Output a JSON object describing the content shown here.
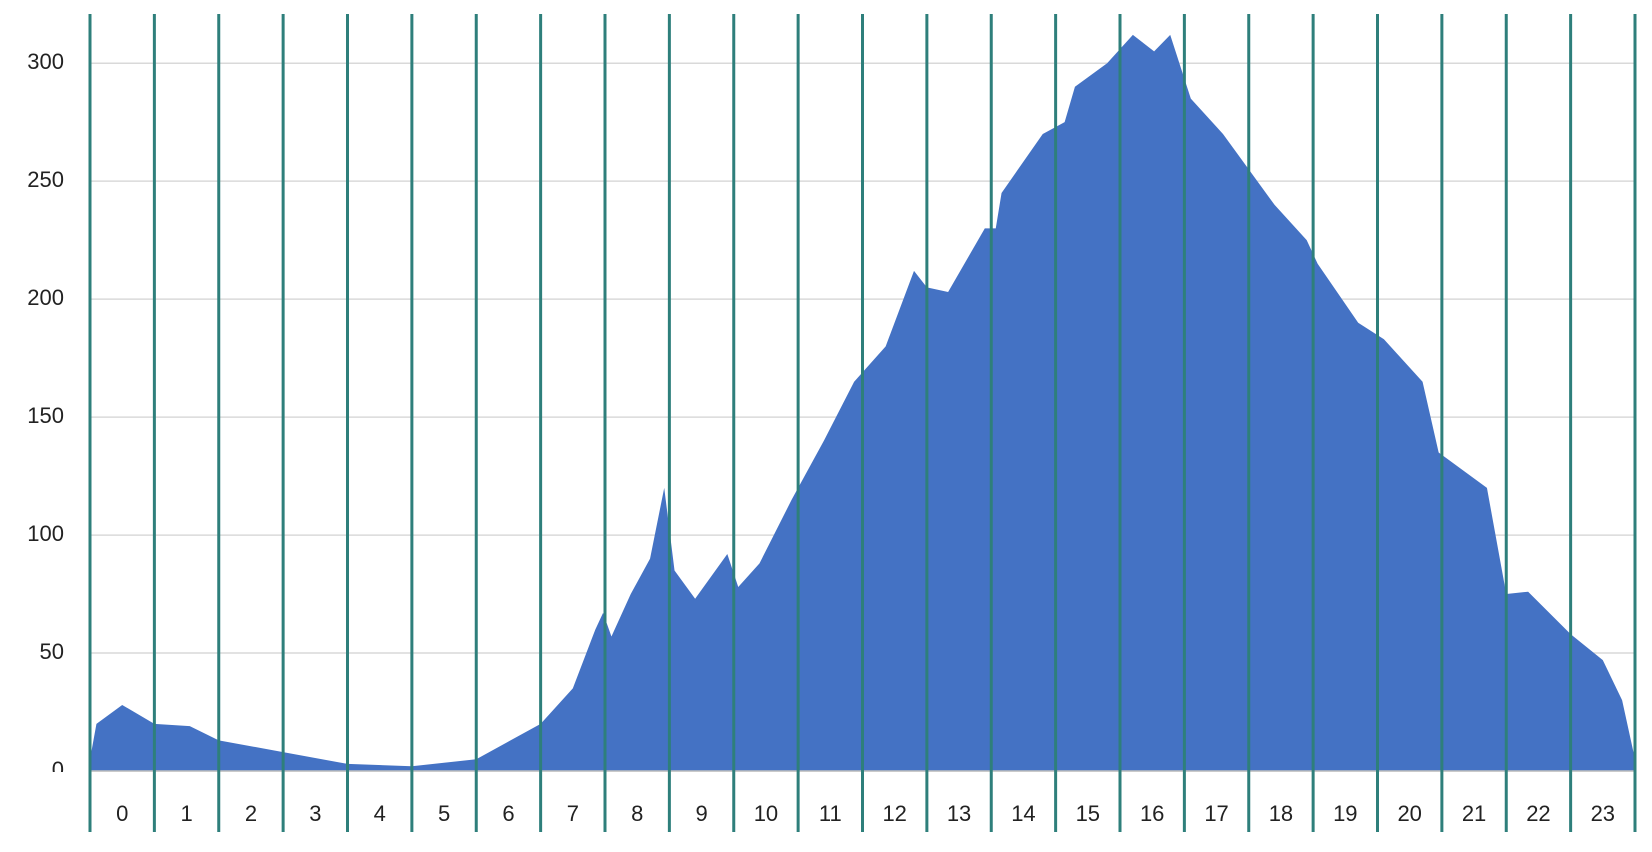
{
  "chart_data": {
    "type": "area",
    "categories": [
      "0",
      "1",
      "2",
      "3",
      "4",
      "5",
      "6",
      "7",
      "8",
      "9",
      "10",
      "11",
      "12",
      "13",
      "14",
      "15",
      "16",
      "17",
      "18",
      "19",
      "20",
      "21",
      "22",
      "23"
    ],
    "x": [
      0,
      0.1,
      0.5,
      1.0,
      1.55,
      2.0,
      3.0,
      4.0,
      5.0,
      6.0,
      7.0,
      7.5,
      7.85,
      7.97,
      8.1,
      8.4,
      8.7,
      8.92,
      9.08,
      9.4,
      9.9,
      10.07,
      10.4,
      10.9,
      11.4,
      11.87,
      12.36,
      12.8,
      13.0,
      13.33,
      13.9,
      14.07,
      14.16,
      14.8,
      15.14,
      15.3,
      15.8,
      16.2,
      16.53,
      16.78,
      17.1,
      17.6,
      18.0,
      18.4,
      18.9,
      19.07,
      19.7,
      20.1,
      20.7,
      20.95,
      21.7,
      22.0,
      22.34,
      23.0,
      23.5,
      23.8,
      24.0
    ],
    "values": [
      5,
      20,
      28,
      20,
      19,
      13,
      8,
      3,
      2,
      5,
      20,
      35,
      60,
      67,
      57,
      75,
      90,
      120,
      85,
      73,
      92,
      78,
      88,
      115,
      140,
      165,
      180,
      212,
      205,
      203,
      230,
      230,
      245,
      270,
      275,
      290,
      300,
      312,
      305,
      312,
      285,
      270,
      255,
      240,
      225,
      215,
      190,
      183,
      165,
      135,
      120,
      75,
      76,
      58,
      47,
      30,
      5
    ],
    "color": "#4472c4",
    "xlim": [
      0,
      24
    ],
    "ylim": [
      0,
      320
    ],
    "yticks": [
      0,
      50,
      100,
      150,
      200,
      250,
      300
    ],
    "grid": true
  }
}
